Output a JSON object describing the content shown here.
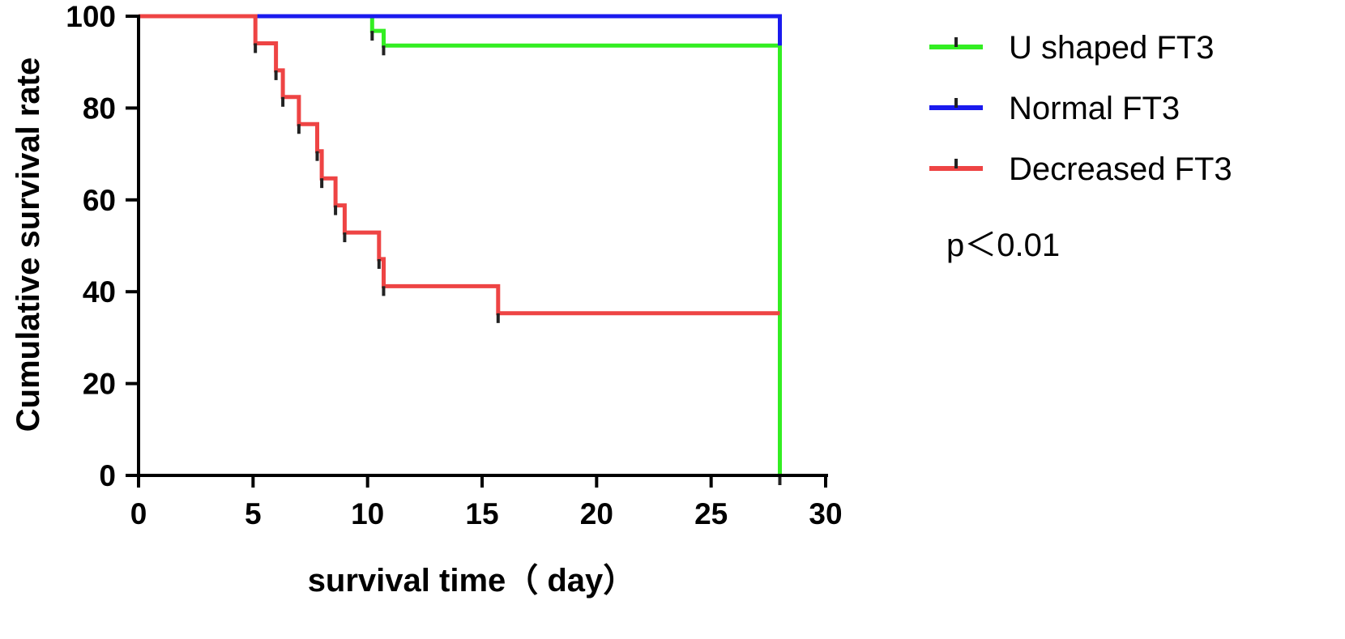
{
  "chart_data": {
    "type": "line",
    "subtype": "kaplan-meier-step",
    "xlabel": "survival time（ day）",
    "ylabel": "Cumulative survival rate",
    "xlim": [
      0,
      30
    ],
    "ylim": [
      0,
      100
    ],
    "xticks": [
      "0",
      "5",
      "10",
      "15",
      "20",
      "25",
      "30"
    ],
    "yticks": [
      "0",
      "20",
      "40",
      "60",
      "80",
      "100"
    ],
    "grid": false,
    "legend_position": "right",
    "annotation": "p＜0.01",
    "series": [
      {
        "name": "U shaped FT3",
        "color": "#33ee22",
        "steps": [
          [
            0,
            100
          ],
          [
            10.2,
            100
          ],
          [
            10.2,
            96.8
          ],
          [
            10.7,
            96.8
          ],
          [
            10.7,
            93.6
          ],
          [
            28,
            93.6
          ],
          [
            28,
            0
          ]
        ],
        "censor_marks": [
          [
            10.2,
            96.8
          ],
          [
            10.7,
            93.6
          ],
          [
            28,
            0
          ]
        ]
      },
      {
        "name": "Normal FT3",
        "color": "#1a1aee",
        "steps": [
          [
            0,
            100
          ],
          [
            28,
            100
          ],
          [
            28,
            93.6
          ]
        ],
        "censor_marks": []
      },
      {
        "name": "Decreased FT3",
        "color": "#ee4444",
        "steps": [
          [
            0,
            100
          ],
          [
            5.1,
            100
          ],
          [
            5.1,
            94.1
          ],
          [
            6,
            94.1
          ],
          [
            6,
            88.2
          ],
          [
            6.3,
            88.2
          ],
          [
            6.3,
            82.4
          ],
          [
            7,
            82.4
          ],
          [
            7,
            76.5
          ],
          [
            7.8,
            76.5
          ],
          [
            7.8,
            70.6
          ],
          [
            8,
            70.6
          ],
          [
            8,
            64.7
          ],
          [
            8.6,
            64.7
          ],
          [
            8.6,
            58.8
          ],
          [
            9,
            58.8
          ],
          [
            9,
            52.9
          ],
          [
            10.5,
            52.9
          ],
          [
            10.5,
            47.1
          ],
          [
            10.7,
            47.1
          ],
          [
            10.7,
            41.2
          ],
          [
            15.7,
            41.2
          ],
          [
            15.7,
            35.3
          ],
          [
            28,
            35.3
          ]
        ],
        "censor_marks": [
          [
            5.1,
            94.1
          ],
          [
            6,
            88.2
          ],
          [
            6.3,
            82.4
          ],
          [
            7,
            76.5
          ],
          [
            7.8,
            70.6
          ],
          [
            8,
            64.7
          ],
          [
            8.6,
            58.8
          ],
          [
            9,
            52.9
          ],
          [
            10.5,
            47.1
          ],
          [
            10.7,
            41.2
          ],
          [
            15.7,
            35.3
          ]
        ]
      }
    ]
  }
}
